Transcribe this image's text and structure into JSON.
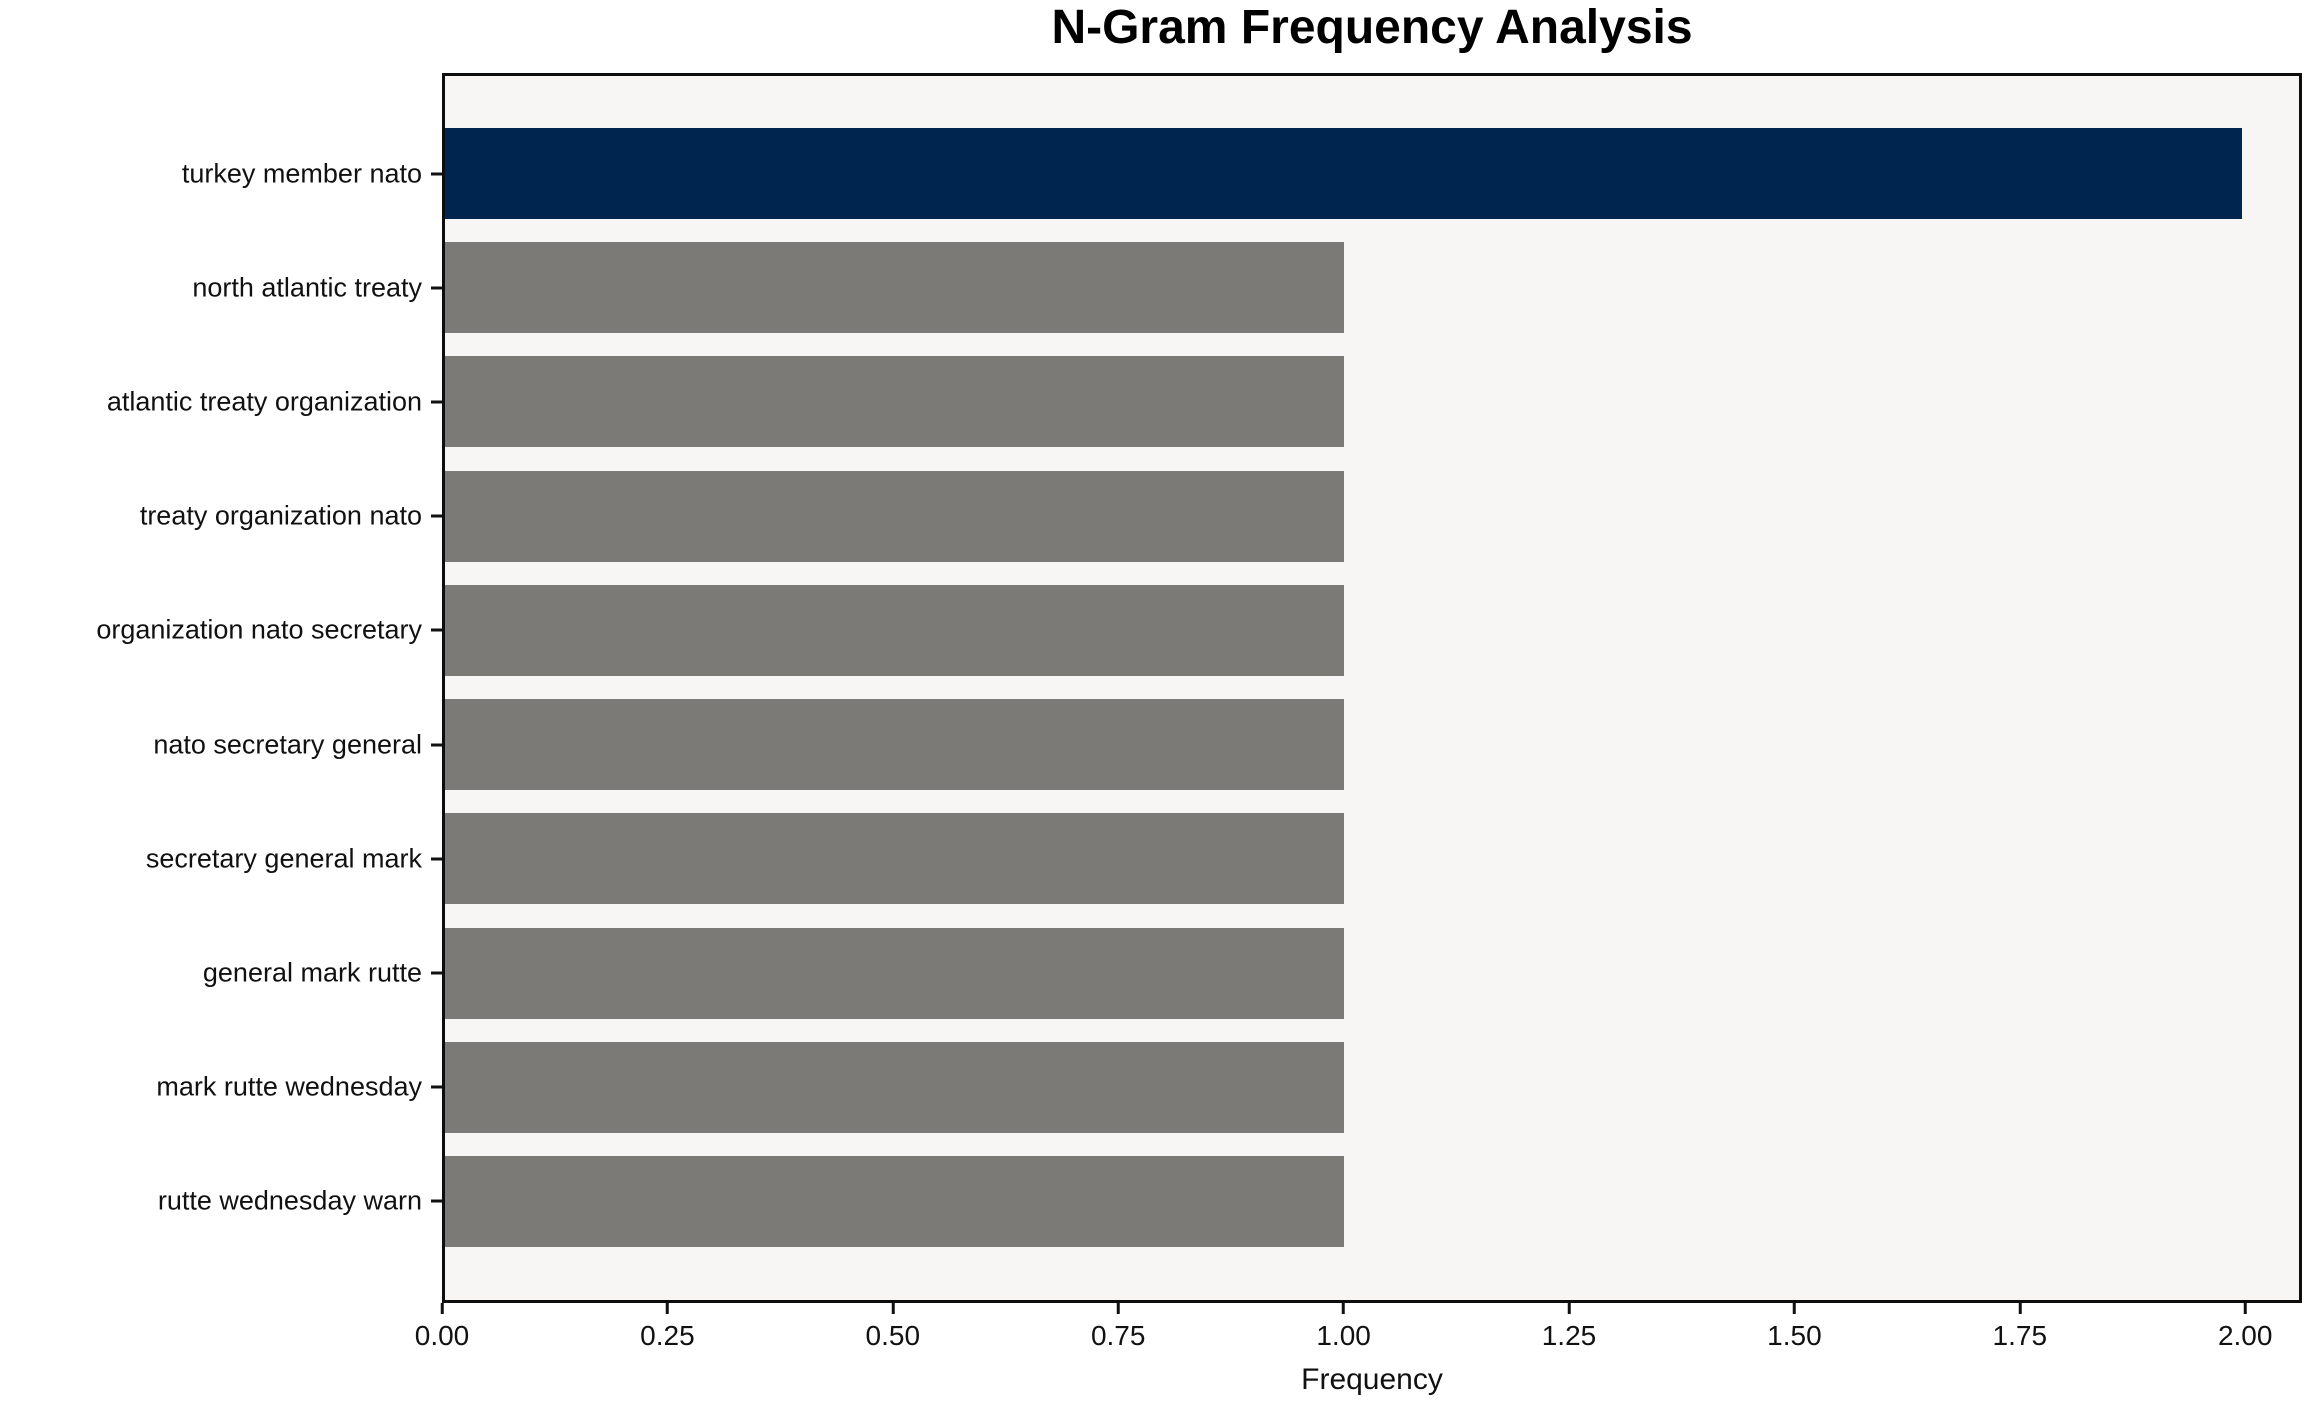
{
  "chart_data": {
    "type": "bar",
    "orientation": "horizontal",
    "title": "N-Gram Frequency Analysis",
    "xlabel": "Frequency",
    "ylabel": "",
    "categories": [
      "turkey member nato",
      "north atlantic treaty",
      "atlantic treaty organization",
      "treaty organization nato",
      "organization nato secretary",
      "nato secretary general",
      "secretary general mark",
      "general mark rutte",
      "mark rutte wednesday",
      "rutte wednesday warn"
    ],
    "values": [
      2,
      1,
      1,
      1,
      1,
      1,
      1,
      1,
      1,
      1
    ],
    "bar_colors": [
      "#00254e",
      "#7b7a76",
      "#7b7a76",
      "#7b7a76",
      "#7b7a76",
      "#7b7a76",
      "#7b7a76",
      "#7b7a76",
      "#7b7a76",
      "#7b7a76"
    ],
    "x_ticks": [
      {
        "value": 0.0,
        "label": "0.00"
      },
      {
        "value": 0.25,
        "label": "0.25"
      },
      {
        "value": 0.5,
        "label": "0.50"
      },
      {
        "value": 0.75,
        "label": "0.75"
      },
      {
        "value": 1.0,
        "label": "1.00"
      },
      {
        "value": 1.25,
        "label": "1.25"
      },
      {
        "value": 1.5,
        "label": "1.50"
      },
      {
        "value": 1.75,
        "label": "1.75"
      },
      {
        "value": 2.0,
        "label": "2.00"
      }
    ],
    "xlim": [
      0,
      2.063
    ],
    "grid": false,
    "legend": null,
    "plot_background": "#f7f6f5",
    "figure_background": "#ffffff",
    "spine_color": "#0d0d0d"
  }
}
